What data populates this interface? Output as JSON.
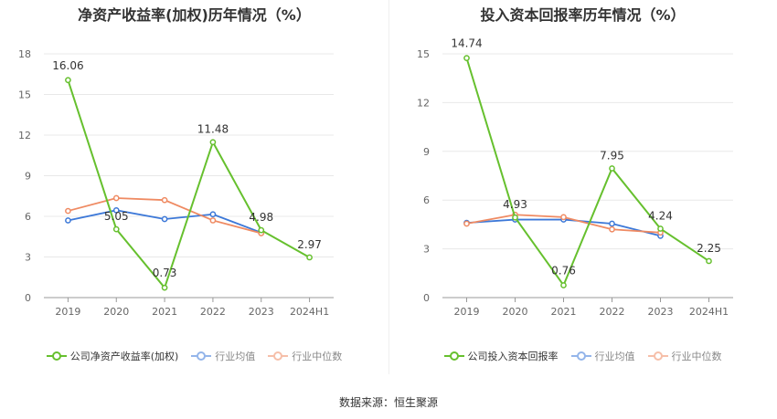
{
  "chart_data": [
    {
      "type": "line",
      "title": "净资产收益率(加权)历年情况（%）",
      "categories": [
        "2019",
        "2020",
        "2021",
        "2022",
        "2023",
        "2024H1"
      ],
      "yticks": [
        "0",
        "3",
        "6",
        "9",
        "12",
        "15",
        "18"
      ],
      "ylim": [
        0,
        18
      ],
      "grid": true,
      "legend_position": "bottom",
      "series": [
        {
          "name": "公司净资产收益率(加权)",
          "color": "#66c02e",
          "values": [
            16.06,
            5.05,
            0.73,
            11.48,
            4.98,
            2.97
          ],
          "labels": [
            "16.06",
            "5.05",
            "0.73",
            "11.48",
            "4.98",
            "2.97"
          ]
        },
        {
          "name": "行业均值",
          "color": "#3c78d8",
          "values": [
            5.7,
            6.45,
            5.8,
            6.15,
            4.8,
            null
          ]
        },
        {
          "name": "行业中位数",
          "color": "#ef8a62",
          "values": [
            6.4,
            7.35,
            7.2,
            5.7,
            4.75,
            null
          ]
        }
      ]
    },
    {
      "type": "line",
      "title": "投入资本回报率历年情况（%）",
      "categories": [
        "2019",
        "2020",
        "2021",
        "2022",
        "2023",
        "2024H1"
      ],
      "yticks": [
        "0",
        "3",
        "6",
        "9",
        "12",
        "15"
      ],
      "ylim": [
        0,
        15
      ],
      "grid": true,
      "legend_position": "bottom",
      "series": [
        {
          "name": "公司投入资本回报率",
          "color": "#66c02e",
          "values": [
            14.74,
            4.93,
            0.76,
            7.95,
            4.24,
            2.25
          ],
          "labels": [
            "14.74",
            "4.93",
            "0.76",
            "7.95",
            "4.24",
            "2.25"
          ]
        },
        {
          "name": "行业均值",
          "color": "#3c78d8",
          "values": [
            4.6,
            4.8,
            4.8,
            4.55,
            3.8,
            null
          ]
        },
        {
          "name": "行业中位数",
          "color": "#ef8a62",
          "values": [
            4.55,
            5.1,
            4.95,
            4.2,
            4.0,
            null
          ]
        }
      ]
    }
  ],
  "source_text": "数据来源：恒生聚源"
}
